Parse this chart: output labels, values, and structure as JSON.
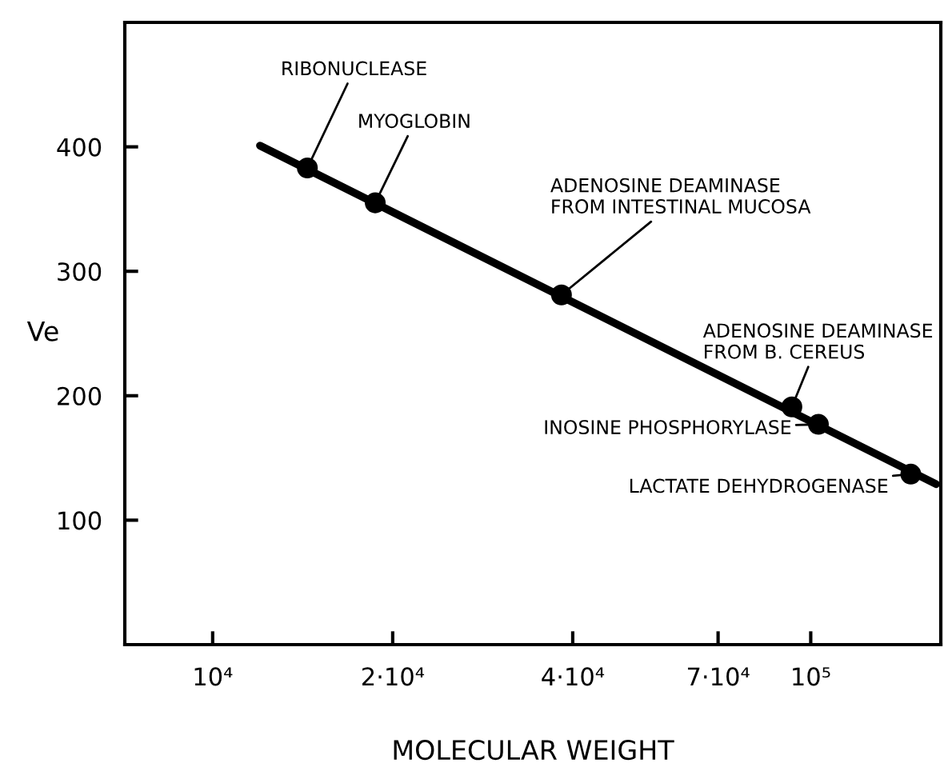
{
  "chart_data": {
    "type": "scatter",
    "xlabel": "MOLECULAR WEIGHT",
    "ylabel": "Ve",
    "log": "x",
    "xlim": [
      7130,
      165000
    ],
    "ylim": [
      0,
      500
    ],
    "xticks": [
      {
        "value": 10000,
        "label": "10⁴"
      },
      {
        "value": 20000,
        "label": "2·10⁴"
      },
      {
        "value": 40000,
        "label": "4·10⁴"
      },
      {
        "value": 70000,
        "label": "7·10⁴"
      },
      {
        "value": 100000,
        "label": "10⁵"
      }
    ],
    "yticks": [
      100,
      200,
      300,
      400
    ],
    "grid": false,
    "series": [
      {
        "type": "line",
        "marker": "none",
        "color": "#000000",
        "x": [
          12000,
          162000
        ],
        "values": [
          401,
          129
        ]
      },
      {
        "marker": "circle",
        "color": "#000000",
        "x": [
          14400,
          18700,
          38300,
          93000,
          103000,
          147000
        ],
        "values": [
          383,
          355,
          281,
          191,
          177,
          137
        ]
      }
    ],
    "annotations": [
      {
        "text": "RIBONUCLEASE",
        "x": 14400,
        "y": 383
      },
      {
        "text": "MYOGLOBIN",
        "x": 18700,
        "y": 355
      },
      {
        "text": "ADENOSINE DEAMINASE\nFROM INTESTINAL MUCOSA",
        "x": 38300,
        "y": 281
      },
      {
        "text": "ADENOSINE DEAMINASE\nFROM B. CEREUS",
        "x": 93000,
        "y": 191
      },
      {
        "text": "INOSINE PHOSPHORYLASE",
        "x": 103000,
        "y": 177
      },
      {
        "text": "LACTATE DEHYDROGENASE",
        "x": 147000,
        "y": 137
      }
    ]
  }
}
